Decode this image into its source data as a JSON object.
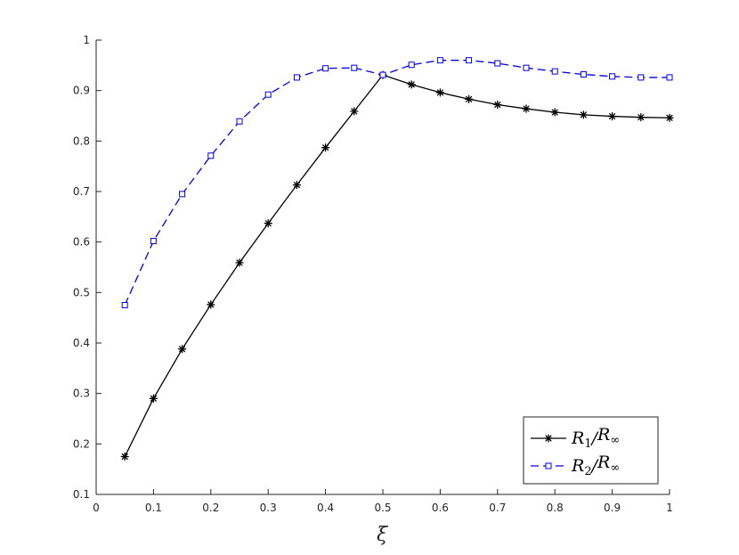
{
  "chart_data": {
    "type": "line",
    "title": "",
    "xlabel": "ξ",
    "ylabel": "",
    "xlim": [
      0,
      1
    ],
    "ylim": [
      0.1,
      1
    ],
    "xticks": [
      "0",
      "0.1",
      "0.2",
      "0.3",
      "0.4",
      "0.5",
      "0.6",
      "0.7",
      "0.8",
      "0.9",
      "1"
    ],
    "yticks": [
      "0.1",
      "0.2",
      "0.3",
      "0.4",
      "0.5",
      "0.6",
      "0.7",
      "0.8",
      "0.9",
      "1"
    ],
    "grid": false,
    "legend_position": "bottom-right",
    "x": [
      0.05,
      0.1,
      0.15,
      0.2,
      0.25,
      0.3,
      0.35,
      0.4,
      0.45,
      0.5,
      0.55,
      0.6,
      0.65,
      0.7,
      0.75,
      0.8,
      0.85,
      0.9,
      0.95,
      1.0
    ],
    "series": [
      {
        "name": "R1/R∞",
        "color": "#000000",
        "line_style": "solid",
        "marker": "asterisk",
        "values": [
          0.175,
          0.29,
          0.388,
          0.476,
          0.559,
          0.637,
          0.713,
          0.787,
          0.859,
          0.931,
          0.912,
          0.896,
          0.883,
          0.872,
          0.864,
          0.857,
          0.852,
          0.849,
          0.847,
          0.846
        ]
      },
      {
        "name": "R2/R∞",
        "color": "#0000e6",
        "line_style": "dashed",
        "marker": "square",
        "values": [
          0.475,
          0.602,
          0.695,
          0.771,
          0.839,
          0.892,
          0.926,
          0.944,
          0.945,
          0.931,
          0.951,
          0.96,
          0.96,
          0.954,
          0.945,
          0.938,
          0.932,
          0.928,
          0.926,
          0.926
        ]
      }
    ],
    "legend": [
      {
        "main": "R",
        "sub": "1",
        "sep": "/",
        "main2": "R",
        "sub2": "∞"
      },
      {
        "main": "R",
        "sub": "2",
        "sep": "/",
        "main2": "R",
        "sub2": "∞"
      }
    ]
  }
}
